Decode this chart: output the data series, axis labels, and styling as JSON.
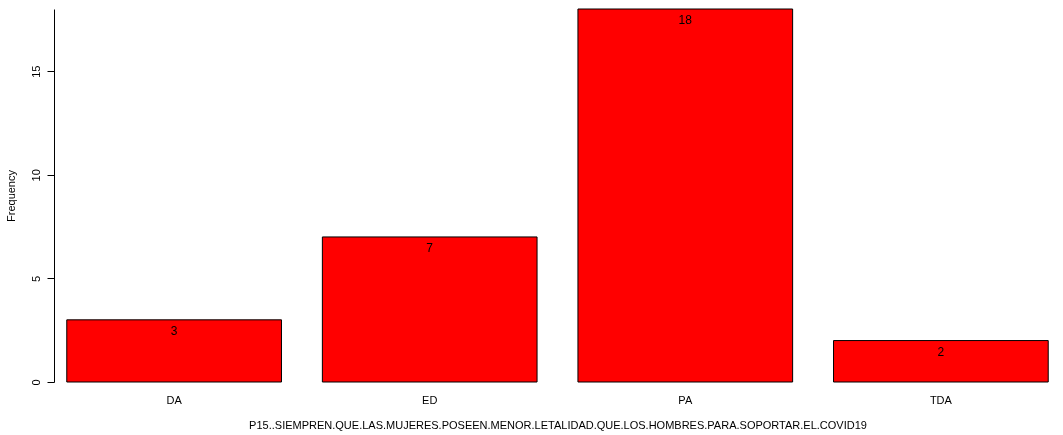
{
  "chart_data": {
    "type": "bar",
    "xlabel": "P15..SIEMPREN.QUE.LAS.MUJERES.POSEEN.MENOR.LETALIDAD.QUE.LOS.HOMBRES.PARA.SOPORTAR.EL.COVID19",
    "ylabel": "Frequency",
    "categories": [
      "DA",
      "ED",
      "PA",
      "TDA"
    ],
    "values": [
      3,
      7,
      18,
      2
    ],
    "color": "#ff0000",
    "ylim": [
      0,
      18
    ],
    "yticks": [
      0,
      5,
      10,
      15
    ],
    "data_labels": true,
    "grid": false
  }
}
